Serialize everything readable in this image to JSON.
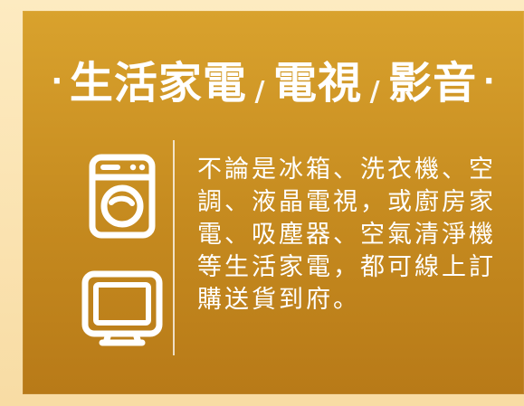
{
  "header": {
    "dot_left": "·",
    "dot_right": "·",
    "part1": "生活家電",
    "sep1": "/",
    "part2": "電視",
    "sep2": "/",
    "part3": "影音"
  },
  "icons": {
    "washer": "washing-machine-icon",
    "tv": "tv-icon"
  },
  "content": {
    "description": "不論是冰箱、洗衣機、空調、液晶電視，或廚房家電、吸塵器、空氣清淨機等生活家電，都可線上訂購送貨到府。"
  },
  "colors": {
    "background_outer": "#fbe6b5",
    "card_top": "#d9a22d",
    "card_bottom": "#b87a18",
    "text": "#ffffff"
  }
}
